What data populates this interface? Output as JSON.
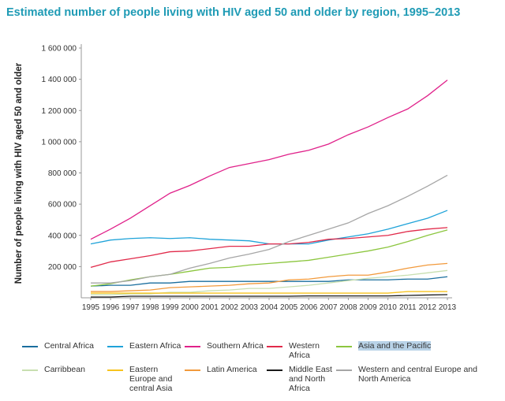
{
  "chart_data": {
    "type": "line",
    "title": "Estimated number of people living with HIV aged 50 and older by region, 1995–2013",
    "ylabel": "Number of people living with HIV aged 50 and older",
    "xlabel": "",
    "ylim": [
      0,
      1600000
    ],
    "yticks": [
      "1 600 000",
      "1 400 000",
      "1 200 000",
      "1 000 000",
      "800 000",
      "600 000",
      "400 000",
      "200 000"
    ],
    "ytick_values": [
      1600000,
      1400000,
      1200000,
      1000000,
      800000,
      600000,
      400000,
      200000
    ],
    "x": [
      "1995",
      "1996",
      "1997",
      "1998",
      "1999",
      "2000",
      "2001",
      "2002",
      "2003",
      "2004",
      "2005",
      "2006",
      "2007",
      "2008",
      "2009",
      "2010",
      "2011",
      "2012",
      "2013"
    ],
    "grid": false,
    "legend_placement": "bottom",
    "series": [
      {
        "name": "Central Africa",
        "color": "#1a6e9e",
        "values": [
          75000,
          80000,
          80000,
          95000,
          95000,
          105000,
          105000,
          105000,
          105000,
          105000,
          105000,
          105000,
          105000,
          115000,
          115000,
          115000,
          120000,
          120000,
          135000
        ]
      },
      {
        "name": "Eastern Africa",
        "color": "#1fa3d9",
        "values": [
          345000,
          370000,
          380000,
          385000,
          380000,
          385000,
          375000,
          370000,
          365000,
          345000,
          345000,
          345000,
          370000,
          390000,
          410000,
          440000,
          475000,
          510000,
          560000
        ]
      },
      {
        "name": "Southern Africa",
        "color": "#e0218a",
        "values": [
          375000,
          440000,
          510000,
          590000,
          670000,
          720000,
          780000,
          835000,
          860000,
          885000,
          920000,
          945000,
          985000,
          1045000,
          1095000,
          1155000,
          1210000,
          1295000,
          1395000
        ]
      },
      {
        "name": "Western Africa",
        "color": "#e12a4a",
        "values": [
          195000,
          230000,
          250000,
          270000,
          295000,
          300000,
          315000,
          330000,
          330000,
          345000,
          345000,
          355000,
          375000,
          380000,
          390000,
          400000,
          425000,
          440000,
          450000
        ]
      },
      {
        "name": "Asia and the Pacific",
        "color": "#8cc63f",
        "values": [
          75000,
          90000,
          115000,
          135000,
          150000,
          170000,
          190000,
          195000,
          210000,
          220000,
          230000,
          240000,
          260000,
          280000,
          300000,
          325000,
          360000,
          400000,
          435000
        ]
      },
      {
        "name": "Carribbean",
        "color": "#c8dfb0",
        "values": [
          20000,
          20000,
          25000,
          25000,
          35000,
          35000,
          45000,
          50000,
          60000,
          60000,
          70000,
          80000,
          95000,
          110000,
          125000,
          135000,
          145000,
          160000,
          175000
        ]
      },
      {
        "name": "Eastern Europe and central Asia",
        "color": "#f7c31e",
        "values": [
          30000,
          30000,
          30000,
          30000,
          30000,
          30000,
          30000,
          30000,
          30000,
          30000,
          30000,
          30000,
          30000,
          30000,
          30000,
          30000,
          40000,
          40000,
          40000
        ]
      },
      {
        "name": "Latin America",
        "color": "#f29a3c",
        "values": [
          40000,
          40000,
          45000,
          50000,
          65000,
          70000,
          75000,
          80000,
          90000,
          95000,
          115000,
          120000,
          135000,
          145000,
          145000,
          165000,
          190000,
          210000,
          220000
        ]
      },
      {
        "name": "Middle East and North Africa",
        "color": "#1a1a1a",
        "values": [
          5000,
          5000,
          10000,
          10000,
          10000,
          10000,
          10000,
          10000,
          10000,
          10000,
          10000,
          12000,
          12000,
          12000,
          12000,
          12000,
          15000,
          18000,
          20000
        ]
      },
      {
        "name": "Western and central Europe and North America",
        "color": "#a6a6a6",
        "values": [
          95000,
          95000,
          110000,
          135000,
          150000,
          190000,
          220000,
          255000,
          280000,
          310000,
          360000,
          400000,
          440000,
          480000,
          540000,
          590000,
          650000,
          715000,
          785000
        ]
      }
    ],
    "highlighted_legend_entry": "Asia and the Pacific"
  }
}
